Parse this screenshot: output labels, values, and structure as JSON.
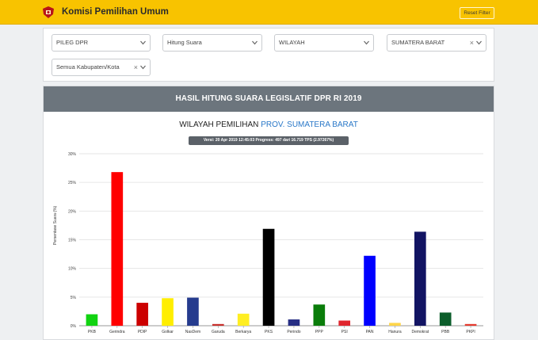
{
  "header": {
    "title": "Komisi Pemilihan Umum",
    "reset_label": "Reset Filter"
  },
  "filters": {
    "election": "PILEG DPR",
    "mode": "Hitung Suara",
    "scope": "WILAYAH",
    "province": "SUMATERA BARAT",
    "regency": "Semua Kabupaten/Kota",
    "clear_symbol": "×"
  },
  "report": {
    "heading": "HASIL HITUNG SUARA LEGISLATIF DPR RI 2019",
    "region_prefix": "WILAYAH PEMILIHAN",
    "region_name": "PROV. SUMATERA BARAT",
    "version_note": "Versi: 20 Apr 2019 12:45:03 Progress: 497 dari 16.719 TPS (2.97267%)"
  },
  "chart_data": {
    "type": "bar",
    "ylabel": "Persentase Suara (%)",
    "ylim": [
      0,
      30
    ],
    "yticks": [
      "0%",
      "5%",
      "10%",
      "15%",
      "20%",
      "25%",
      "30%"
    ],
    "grid": true,
    "categories": [
      "PKB",
      "Gerindra",
      "PDIP",
      "Golkar",
      "NasDem",
      "Garuda",
      "Berkarya",
      "PKS",
      "Perindo",
      "PPP",
      "PSI",
      "PAN",
      "Hanura",
      "Demokrat",
      "PBB",
      "PKPI"
    ],
    "values": [
      2.0,
      26.8,
      4.0,
      4.8,
      4.9,
      0.3,
      2.1,
      16.9,
      1.1,
      3.7,
      0.9,
      12.2,
      0.5,
      16.4,
      2.3,
      0.3
    ],
    "colors": [
      "#11d311",
      "#ff0000",
      "#cc0000",
      "#ffee00",
      "#253b8e",
      "#c8302d",
      "#ffee22",
      "#000000",
      "#272e84",
      "#0a7d0a",
      "#e0262e",
      "#0000ff",
      "#ffd54a",
      "#121463",
      "#0b5d2a",
      "#e53a2e"
    ]
  }
}
